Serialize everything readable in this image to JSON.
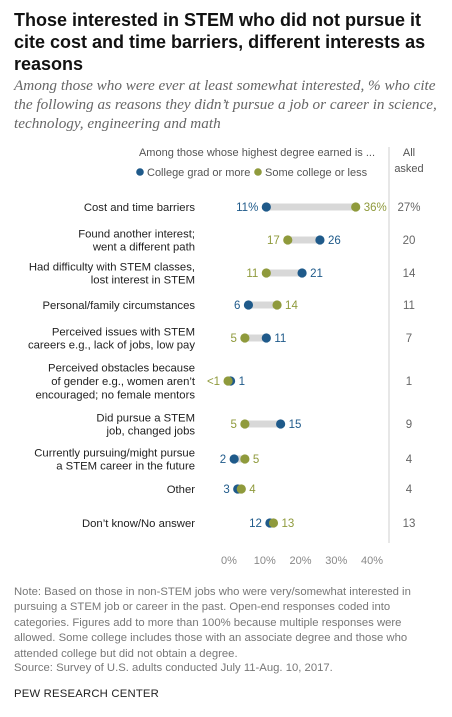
{
  "title": "Those interested in STEM who did not pursue it cite cost and time barriers, different interests as reasons",
  "subtitle": "Among those who were ever at least somewhat interested, % who cite the following as reasons they didn’t pursue a job or career in science, technology, engineering and math",
  "colors": {
    "college": "#1f5a8a",
    "some_college": "#8f9a3c",
    "connector": "#d8d8d8",
    "all_text": "#666666"
  },
  "chart_data": {
    "type": "dot",
    "header": "Among those whose highest degree earned is ...",
    "all_header": [
      "All",
      "asked"
    ],
    "series": [
      {
        "name": "College grad or more",
        "key": "college"
      },
      {
        "name": "Some college or less",
        "key": "some_college"
      }
    ],
    "xlim": [
      0,
      40
    ],
    "xticks": [
      "0%",
      "10%",
      "20%",
      "30%",
      "40%"
    ],
    "categories": [
      {
        "label": [
          "Cost and time barriers"
        ],
        "college": 11,
        "college_label": "11%",
        "some_college": 36,
        "some_college_label": "36%",
        "all": "27%"
      },
      {
        "label": [
          "Found another interest;",
          "went a different path"
        ],
        "college": 26,
        "college_label": "26",
        "some_college": 17,
        "some_college_label": "17",
        "all": "20"
      },
      {
        "label": [
          "Had difficulty with STEM classes,",
          "lost interest in STEM"
        ],
        "college": 21,
        "college_label": "21",
        "some_college": 11,
        "some_college_label": "11",
        "all": "14"
      },
      {
        "label": [
          "Personal/family circumstances"
        ],
        "college": 6,
        "college_label": "6",
        "some_college": 14,
        "some_college_label": "14",
        "all": "11"
      },
      {
        "label": [
          "Perceived issues with STEM",
          "careers e.g., lack of jobs, low pay"
        ],
        "college": 11,
        "college_label": "11",
        "some_college": 5,
        "some_college_label": "5",
        "all": "7"
      },
      {
        "label": [
          "Perceived obstacles because",
          "of gender e.g., women aren’t",
          "encouraged; no female mentors"
        ],
        "college": 1,
        "college_label": "1",
        "some_college": 0.3,
        "some_college_label": "<1",
        "all": "1"
      },
      {
        "label": [
          "Did pursue a STEM",
          "job, changed jobs"
        ],
        "college": 15,
        "college_label": "15",
        "some_college": 5,
        "some_college_label": "5",
        "all": "9"
      },
      {
        "label": [
          "Currently pursuing/might pursue",
          "a STEM career in the future"
        ],
        "college": 2,
        "college_label": "2",
        "some_college": 5,
        "some_college_label": "5",
        "all": "4"
      },
      {
        "label": [
          "Other"
        ],
        "college": 3,
        "college_label": "3",
        "some_college": 4,
        "some_college_label": "4",
        "all": "4"
      },
      {
        "label": [
          "Don’t know/No answer"
        ],
        "college": 12,
        "college_label": "12",
        "some_college": 13,
        "some_college_label": "13",
        "all": "13"
      }
    ]
  },
  "note": "Note: Based on those in non-STEM jobs who were very/somewhat interested in pursuing a STEM job or career in the past. Open-end responses coded into categories. Figures add to more than 100% because multiple responses were allowed. Some college includes those with an associate degree and those who attended college but did not obtain a degree.",
  "source": "Source: Survey of U.S. adults conducted July 11-Aug. 10, 2017.",
  "org": "PEW RESEARCH CENTER"
}
